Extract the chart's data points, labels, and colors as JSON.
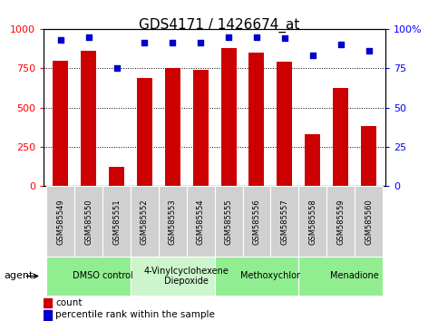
{
  "title": "GDS4171 / 1426674_at",
  "categories": [
    "GSM585549",
    "GSM585550",
    "GSM585551",
    "GSM585552",
    "GSM585553",
    "GSM585554",
    "GSM585555",
    "GSM585556",
    "GSM585557",
    "GSM585558",
    "GSM585559",
    "GSM585560"
  ],
  "bar_values": [
    800,
    860,
    125,
    690,
    750,
    740,
    880,
    850,
    790,
    330,
    625,
    380
  ],
  "dot_values": [
    93,
    95,
    75,
    91,
    91,
    91,
    95,
    95,
    94,
    83,
    90,
    86
  ],
  "bar_color": "#cc0000",
  "dot_color": "#0000cc",
  "ylim_left": [
    0,
    1000
  ],
  "ylim_right": [
    0,
    100
  ],
  "yticks_left": [
    0,
    250,
    500,
    750,
    1000
  ],
  "yticks_right": [
    0,
    25,
    50,
    75,
    100
  ],
  "ytick_right_labels": [
    "0",
    "25",
    "50",
    "75",
    "100%"
  ],
  "grid_lines": [
    250,
    500,
    750
  ],
  "agents": [
    {
      "label": "DMSO control",
      "start": 0,
      "end": 3,
      "color": "#90ee90"
    },
    {
      "label": "4-Vinylcyclohexene\nDiepoxide",
      "start": 3,
      "end": 6,
      "color": "#ccf5cc"
    },
    {
      "label": "Methoxychlor",
      "start": 6,
      "end": 9,
      "color": "#90ee90"
    },
    {
      "label": "Menadione",
      "start": 9,
      "end": 12,
      "color": "#90ee90"
    }
  ],
  "agent_label": "agent",
  "legend_count_label": "count",
  "legend_pct_label": "percentile rank within the sample",
  "bar_width": 0.55,
  "title_fontsize": 11,
  "tick_fontsize": 8,
  "cat_fontsize": 6,
  "agent_fontsize": 7
}
